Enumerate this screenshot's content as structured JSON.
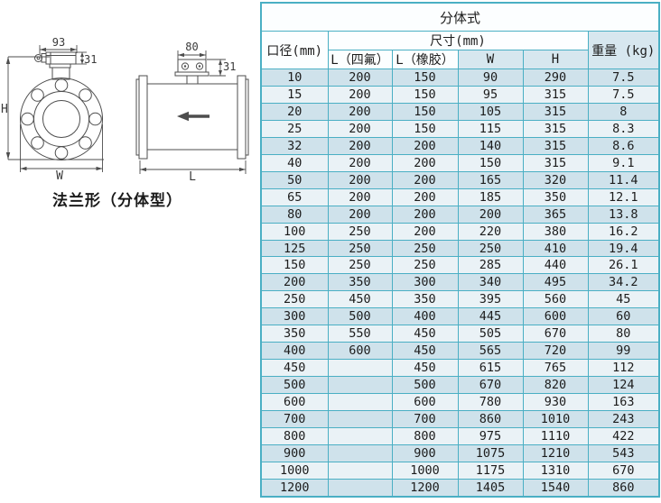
{
  "diagram": {
    "caption": "法兰形（分体型）",
    "front_view": {
      "box_width_label": "93",
      "box_height_label": "31",
      "height_label": "H",
      "width_label": "W"
    },
    "side_view": {
      "box_width_label": "80",
      "box_height_label": "31",
      "length_label": "L"
    }
  },
  "table": {
    "title": "分体式",
    "headers": {
      "diameter": "口径(mm)",
      "size_group": "尺寸(mm)",
      "l_ptfe": "L（四氟）",
      "l_rubber": "L（橡胶）",
      "w": "W",
      "h": "H",
      "weight": "重量 (kg)"
    },
    "rows": [
      [
        "10",
        "200",
        "150",
        "90",
        "290",
        "7.5"
      ],
      [
        "15",
        "200",
        "150",
        "95",
        "315",
        "7.5"
      ],
      [
        "20",
        "200",
        "150",
        "105",
        "315",
        "8"
      ],
      [
        "25",
        "200",
        "150",
        "115",
        "315",
        "8.3"
      ],
      [
        "32",
        "200",
        "200",
        "140",
        "315",
        "8.6"
      ],
      [
        "40",
        "200",
        "200",
        "150",
        "315",
        "9.1"
      ],
      [
        "50",
        "200",
        "200",
        "165",
        "320",
        "11.4"
      ],
      [
        "65",
        "200",
        "200",
        "185",
        "350",
        "12.1"
      ],
      [
        "80",
        "200",
        "200",
        "200",
        "365",
        "13.8"
      ],
      [
        "100",
        "250",
        "200",
        "220",
        "380",
        "16.2"
      ],
      [
        "125",
        "250",
        "250",
        "250",
        "410",
        "19.4"
      ],
      [
        "150",
        "250",
        "250",
        "285",
        "440",
        "26.1"
      ],
      [
        "200",
        "350",
        "300",
        "340",
        "495",
        "34.2"
      ],
      [
        "250",
        "450",
        "350",
        "395",
        "560",
        "45"
      ],
      [
        "300",
        "500",
        "400",
        "445",
        "600",
        "60"
      ],
      [
        "350",
        "550",
        "450",
        "505",
        "670",
        "80"
      ],
      [
        "400",
        "600",
        "450",
        "565",
        "720",
        "99"
      ],
      [
        "450",
        "",
        "450",
        "615",
        "765",
        "112"
      ],
      [
        "500",
        "",
        "500",
        "670",
        "820",
        "124"
      ],
      [
        "600",
        "",
        "600",
        "780",
        "930",
        "163"
      ],
      [
        "700",
        "",
        "700",
        "860",
        "1010",
        "243"
      ],
      [
        "800",
        "",
        "800",
        "975",
        "1110",
        "422"
      ],
      [
        "900",
        "",
        "900",
        "1075",
        "1210",
        "543"
      ],
      [
        "1000",
        "",
        "1000",
        "1175",
        "1310",
        "670"
      ],
      [
        "1200",
        "",
        "1200",
        "1405",
        "1540",
        "860"
      ]
    ]
  },
  "colors": {
    "table_border": "#4aafc4",
    "row_blue": "#cfe2eb",
    "row_light": "#eaf2f6",
    "header_tint": "#d7e7ef",
    "line_color": "#4d4d4d"
  }
}
